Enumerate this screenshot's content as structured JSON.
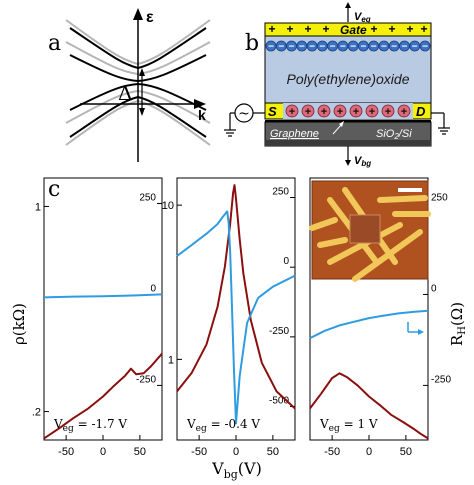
{
  "panel_labels": {
    "a": "a",
    "b": "b",
    "c": "c"
  },
  "band_diagram": {
    "energy_axis_label": "ε",
    "momentum_axis_label": "k",
    "gap_label": "Δ"
  },
  "device_schematic": {
    "top_voltage_label": "V",
    "top_voltage_sub": "eg",
    "gate_label": "Gate",
    "gate_charges": [
      "+",
      "+",
      "+",
      "+",
      "+",
      "+",
      "+",
      "+",
      "+"
    ],
    "ion_charges": [
      "−",
      "−",
      "−",
      "−",
      "−",
      "−",
      "−",
      "−",
      "−",
      "−",
      "−",
      "−",
      "−",
      "−",
      "−",
      "−"
    ],
    "electrolyte_label": "Poly(ethylene)oxide",
    "source_label": "S",
    "drain_label": "D",
    "channel_charges": [
      "+",
      "+",
      "+",
      "+",
      "+",
      "+",
      "+",
      "+"
    ],
    "ac_source_symbol": "~",
    "graphene_label": "Graphene",
    "substrate_label": "SiO",
    "substrate_sub": "2",
    "substrate_suffix": "/Si",
    "bottom_voltage_label": "V",
    "bottom_voltage_sub": "bg",
    "colors": {
      "gate": "#f4f00a",
      "electrolyte": "#b9cbe3",
      "ion": "#3c72c6",
      "contact": "#f4f00a",
      "channel_ion": "#d96a7a",
      "substrate": "#5c5c5c"
    }
  },
  "chart_data": [
    {
      "type": "line",
      "panel": "left",
      "annotation": {
        "prefix": "V",
        "sub": "eg",
        "suffix": " = -1.7 V"
      },
      "ylabel": "ρ(kΩ)",
      "yscale": "log",
      "ylim_left": [
        0.16,
        1.25
      ],
      "ylim_right": [
        -400,
        320
      ],
      "xlim": [
        -80,
        80
      ],
      "x_ticks": [
        -50,
        0,
        50
      ],
      "y_ticks_left": [
        {
          "value": 1,
          "label": "1"
        },
        {
          "value": 0.2,
          "label": ".2"
        }
      ],
      "y_ticks_right": [
        {
          "value": 250,
          "label": "250"
        },
        {
          "value": 0,
          "label": "0"
        },
        {
          "value": -250,
          "label": "-250"
        }
      ],
      "series": [
        {
          "color": "#8b0f0f",
          "axis": "left",
          "x": [
            -80,
            -60,
            -40,
            -20,
            0,
            15,
            30,
            38,
            45,
            55,
            65,
            80
          ],
          "y": [
            0.162,
            0.175,
            0.19,
            0.205,
            0.225,
            0.245,
            0.265,
            0.28,
            0.268,
            0.27,
            0.285,
            0.315
          ]
        },
        {
          "color": "#2f9be0",
          "axis": "right",
          "x": [
            -80,
            -40,
            0,
            40,
            80
          ],
          "y": [
            -8,
            -6,
            -5,
            -3,
            0
          ]
        }
      ]
    },
    {
      "type": "line",
      "panel": "middle",
      "annotation": {
        "prefix": "V",
        "sub": "eg",
        "suffix": " = -0.4 V"
      },
      "yscale": "log",
      "ylim_left": [
        0.3,
        15
      ],
      "ylim_right": [
        -620,
        320
      ],
      "xlim": [
        -80,
        80
      ],
      "x_ticks": [
        -50,
        0,
        50
      ],
      "y_ticks_left": [
        {
          "value": 10,
          "label": "10"
        },
        {
          "value": 1,
          "label": "1"
        }
      ],
      "y_ticks_right": [
        {
          "value": 250,
          "label": "250"
        },
        {
          "value": 0,
          "label": "0"
        },
        {
          "value": -250,
          "label": "-250"
        },
        {
          "value": -500,
          "label": "-500"
        }
      ],
      "series": [
        {
          "color": "#8b0f0f",
          "axis": "left",
          "x": [
            -80,
            -60,
            -40,
            -25,
            -15,
            -8,
            -4,
            -2,
            0,
            5,
            10,
            20,
            35,
            55,
            80
          ],
          "y": [
            0.62,
            0.82,
            1.25,
            2.2,
            4.0,
            7.5,
            12.0,
            13.5,
            11.0,
            6.0,
            3.6,
            1.8,
            0.95,
            0.62,
            0.48
          ]
        },
        {
          "color": "#2f9be0",
          "axis": "right",
          "x": [
            -80,
            -60,
            -40,
            -25,
            -18,
            -12,
            -10,
            -8,
            -6,
            -3,
            0,
            5,
            15,
            30,
            50,
            80
          ],
          "y": [
            40,
            80,
            120,
            155,
            180,
            200,
            160,
            60,
            -100,
            -350,
            -560,
            -390,
            -200,
            -110,
            -70,
            -30
          ]
        }
      ]
    },
    {
      "type": "line",
      "panel": "right",
      "annotation": {
        "prefix": "V",
        "sub": "eg",
        "suffix": " = 1 V"
      },
      "ylabel_right_prefix": "R",
      "ylabel_right_sub": "H",
      "ylabel_right_suffix": "(Ω)",
      "xlim": [
        -80,
        80
      ],
      "x_ticks": [
        -50,
        0,
        50
      ],
      "ylim_right": [
        -400,
        320
      ],
      "y_ticks_right": [
        {
          "value": 250,
          "label": "250"
        },
        {
          "value": 0,
          "label": "0"
        },
        {
          "value": -250,
          "label": "-250"
        }
      ],
      "inset_label": "",
      "series": [
        {
          "color": "#8b0f0f",
          "axis": "left",
          "x": [
            -80,
            -65,
            -50,
            -40,
            -30,
            -15,
            0,
            15,
            30,
            45,
            60,
            70,
            80
          ],
          "y": [
            0.205,
            0.23,
            0.26,
            0.27,
            0.262,
            0.245,
            0.225,
            0.21,
            0.195,
            0.185,
            0.175,
            0.168,
            0.162
          ]
        },
        {
          "color": "#2f9be0",
          "axis": "right",
          "x": [
            -80,
            -60,
            -40,
            -20,
            0,
            20,
            40,
            60,
            80
          ],
          "y": [
            -120,
            -100,
            -85,
            -75,
            -65,
            -58,
            -52,
            -48,
            -45
          ]
        }
      ]
    }
  ],
  "shared_xlabel": {
    "prefix": "V",
    "sub": "bg",
    "suffix": "(V)"
  }
}
